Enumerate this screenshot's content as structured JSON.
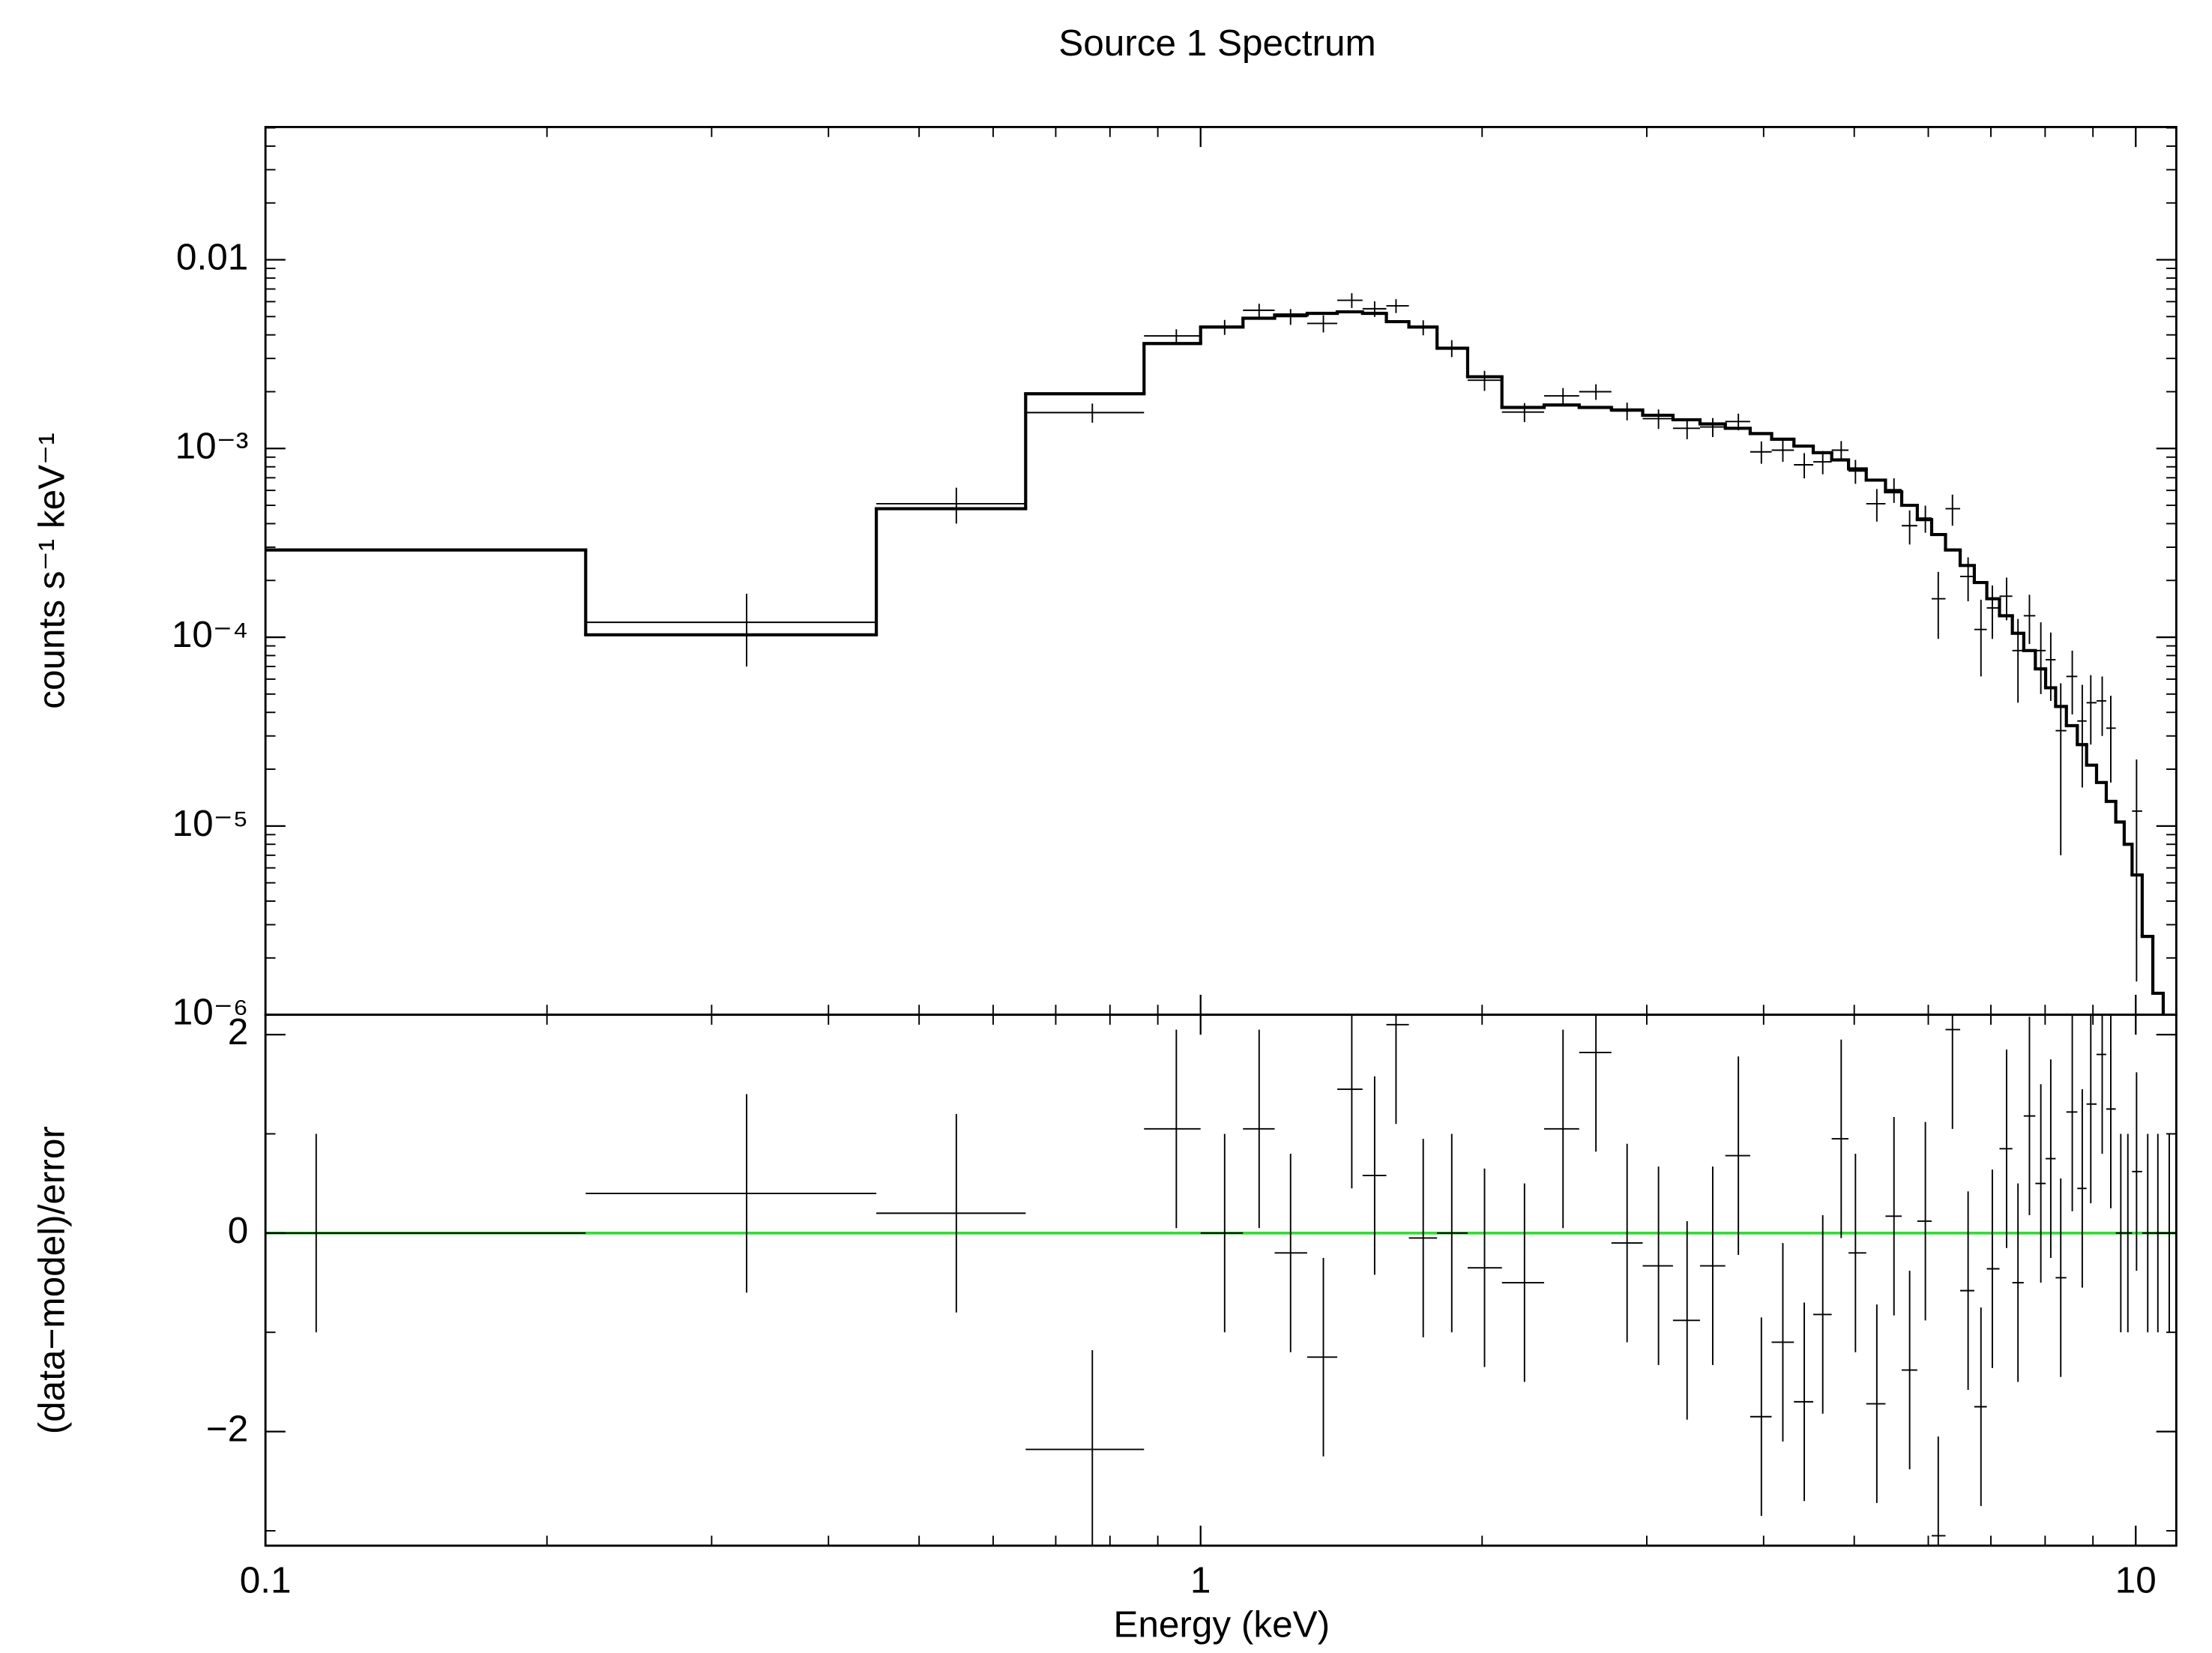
{
  "chart_data": {
    "type": "spectrum",
    "title": "Source 1 Spectrum",
    "xlabel": "Energy (keV)",
    "xscale": "log",
    "xlim": [
      0.1,
      11.05
    ],
    "xticks": [
      0.1,
      1,
      10
    ],
    "xminorticks": [
      0.2,
      0.3,
      0.4,
      0.5,
      0.6,
      0.7,
      0.8,
      0.9,
      2,
      3,
      4,
      5,
      6,
      7,
      8,
      9
    ],
    "energy": [
      0.1133,
      0.327,
      0.548,
      0.766,
      0.942,
      1.061,
      1.155,
      1.248,
      1.353,
      1.451,
      1.535,
      1.618,
      1.73,
      1.856,
      2.012,
      2.22,
      2.441,
      2.647,
      2.858,
      3.088,
      3.313,
      3.529,
      3.759,
      3.978,
      4.194,
      4.421,
      4.627,
      4.842,
      5.015,
      5.286,
      5.514,
      5.731,
      5.957,
      6.149,
      6.368,
      6.618,
      6.831,
      7.025,
      7.276,
      7.483,
      7.697,
      7.916,
      8.112,
      8.314,
      8.553,
      8.766,
      8.952,
      9.207,
      9.404,
      9.639,
      9.808,
      10.02,
      10.3,
      10.56,
      10.86
    ],
    "energy_edges": [
      0.1,
      0.22,
      0.45,
      0.65,
      0.87,
      1.0,
      1.11,
      1.2,
      1.3,
      1.4,
      1.49,
      1.58,
      1.67,
      1.79,
      1.93,
      2.1,
      2.33,
      2.54,
      2.75,
      2.97,
      3.2,
      3.42,
      3.64,
      3.87,
      4.08,
      4.31,
      4.52,
      4.73,
      4.93,
      5.15,
      5.4,
      5.62,
      5.84,
      6.05,
      6.26,
      6.49,
      6.72,
      6.93,
      7.15,
      7.38,
      7.59,
      7.81,
      8.01,
      8.21,
      8.43,
      8.66,
      8.86,
      9.08,
      9.3,
      9.52,
      9.72,
      9.91,
      10.16,
      10.43,
      10.7,
      11.05
    ],
    "panels": [
      {
        "type": "step-errorbar",
        "ylabel": "counts s⁻¹ keV⁻¹",
        "yscale": "log",
        "ylim": [
          1e-06,
          0.0505
        ],
        "yticks": [
          0.01,
          {
            "value": 0.001,
            "label": "10⁻³"
          },
          {
            "value": 0.0001,
            "label": "10⁻⁴"
          },
          {
            "value": 1e-05,
            "label": "10⁻⁵"
          },
          {
            "value": 1e-06,
            "label": "10⁻⁶"
          }
        ],
        "yminorticks": [
          2e-06,
          3e-06,
          4e-06,
          5e-06,
          6e-06,
          7e-06,
          8e-06,
          9e-06,
          2e-05,
          3e-05,
          4e-05,
          5e-05,
          6e-05,
          7e-05,
          8e-05,
          9e-05,
          0.0002,
          0.0003,
          0.0004,
          0.0005,
          0.0006,
          0.0007,
          0.0008,
          0.0009,
          0.002,
          0.003,
          0.004,
          0.005,
          0.006,
          0.007,
          0.008,
          0.009,
          0.02,
          0.03,
          0.04,
          0.05
        ],
        "color": "#000000",
        "model_color": "#000000",
        "values": [
          null,
          0.00012,
          0.00051,
          0.00155,
          0.00395,
          0.0044,
          0.0054,
          0.005,
          0.0046,
          0.0061,
          0.0055,
          0.0057,
          0.00438,
          0.0034,
          0.0023,
          0.00156,
          0.0019,
          0.002,
          0.00158,
          0.00144,
          0.00128,
          0.0013,
          0.00139,
          0.00096,
          0.00098,
          0.00082,
          0.00085,
          0.00098,
          0.00076,
          0.00051,
          0.000605,
          0.00039,
          0.000428,
          0.00016,
          0.00048,
          0.00021,
          0.00011,
          0.000143,
          0.000165,
          8.5e-05,
          0.00013,
          8.5e-05,
          7.6e-05,
          3.2e-05,
          6.2e-05,
          3.6e-05,
          4.5e-05,
          4.6e-05,
          3.3e-05,
          null,
          null,
          1.2e-05,
          null,
          null,
          null
        ],
        "errors": [
          null,
          5e-05,
          0.00011,
          0.00018,
          0.00033,
          0.0004,
          0.00045,
          0.00048,
          0.00048,
          0.00055,
          0.00052,
          0.00048,
          0.0004,
          0.00035,
          0.00028,
          0.00018,
          0.00019,
          0.00019,
          0.00017,
          0.00017,
          0.00016,
          0.00015,
          0.00014,
          0.00013,
          0.00013,
          0.000125,
          0.00012,
          0.000115,
          0.00011,
          0.0001,
          9e-05,
          8e-05,
          7e-05,
          6.2e-05,
          9e-05,
          5.5e-05,
          4.8e-05,
          4.5e-05,
          4.2e-05,
          4e-05,
          3.8e-05,
          3.5e-05,
          3e-05,
          2.5e-05,
          2.3e-05,
          2e-05,
          1.8e-05,
          1.6e-05,
          1.6e-05,
          null,
          null,
          1.05e-05,
          null,
          null,
          null
        ],
        "model": [
          0.00029,
          0.000103,
          0.00048,
          0.00195,
          0.0036,
          0.0044,
          0.0049,
          0.0051,
          0.0052,
          0.0053,
          0.0052,
          0.0047,
          0.0044,
          0.0034,
          0.0024,
          0.00165,
          0.0017,
          0.00165,
          0.0016,
          0.0015,
          0.00142,
          0.00135,
          0.00128,
          0.0012,
          0.00112,
          0.00103,
          0.00095,
          0.00087,
          0.00078,
          0.00068,
          0.00059,
          0.0005,
          0.00042,
          0.00035,
          0.00029,
          0.00024,
          0.000195,
          0.00016,
          0.00013,
          0.000105,
          8.5e-05,
          6.8e-05,
          5.4e-05,
          4.3e-05,
          3.4e-05,
          2.7e-05,
          2.1e-05,
          1.7e-05,
          1.35e-05,
          1.05e-05,
          8e-06,
          5.5e-06,
          2.6e-06,
          1.3e-06,
          7e-07
        ]
      },
      {
        "type": "residual",
        "ylabel": "(data−model)/error",
        "yscale": "linear",
        "ylim": [
          -3.15,
          2.2
        ],
        "yticks": [
          2,
          0,
          {
            "value": -2,
            "label": "−2"
          }
        ],
        "yminorticks": [
          1,
          -1,
          -3
        ],
        "color": "#000000",
        "reference_line": {
          "value": 0,
          "color": "#33dd33"
        },
        "values": [
          0,
          0.4,
          0.2,
          -2.18,
          1.05,
          0,
          1.05,
          -0.2,
          -1.25,
          1.45,
          0.58,
          2.1,
          -0.05,
          0,
          -0.35,
          -0.5,
          1.05,
          1.82,
          -0.1,
          -0.33,
          -0.88,
          -0.33,
          0.78,
          -1.85,
          -1.1,
          -1.7,
          -0.82,
          0.95,
          -0.2,
          -1.72,
          0.17,
          -1.38,
          0.12,
          -3.05,
          2.05,
          -0.58,
          -1.75,
          -0.36,
          0.85,
          -0.5,
          1.18,
          0.5,
          0.75,
          -0.45,
          1.22,
          0.45,
          1.3,
          1.8,
          1.25,
          0,
          0,
          0.62,
          0,
          0,
          0
        ],
        "errors": [
          1,
          1,
          1,
          1,
          1,
          1,
          1,
          1,
          1,
          1,
          1,
          1,
          1,
          1,
          1,
          1,
          1,
          1,
          1,
          1,
          1,
          1,
          1,
          1,
          1,
          1,
          1,
          1,
          1,
          1,
          1,
          1,
          1,
          1,
          1,
          1,
          1,
          1,
          1,
          1,
          1,
          1,
          1,
          1,
          1,
          1,
          1,
          1,
          1,
          1,
          1,
          1,
          1,
          1,
          1
        ]
      }
    ]
  }
}
